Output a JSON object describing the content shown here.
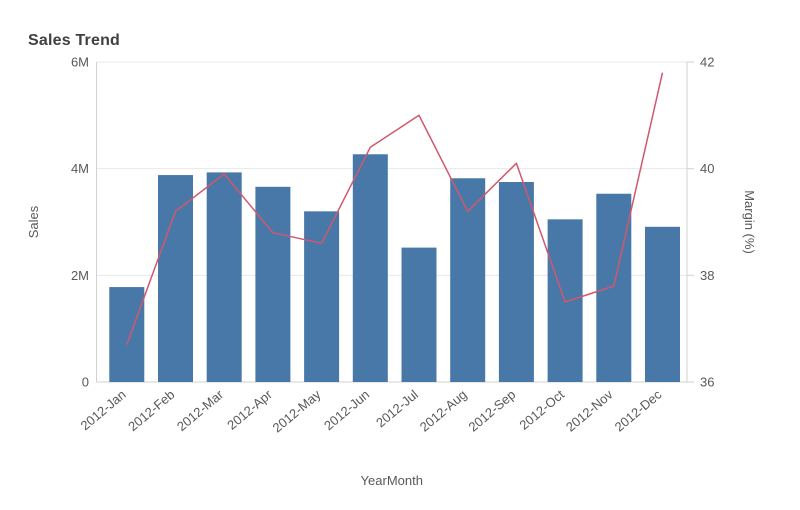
{
  "title": "Sales Trend",
  "colors": {
    "bar": "#4878a8",
    "line": "#d0586e",
    "grid": "#e8e8e8",
    "axis_line": "#d2d2d2",
    "tick_text": "#595959",
    "title_text": "#404040"
  },
  "chart_data": {
    "type": "bar",
    "subtype": "combo-bar-line",
    "title": "Sales Trend",
    "xlabel": "YearMonth",
    "grid": true,
    "legend": "none",
    "categories": [
      "2012-Jan",
      "2012-Feb",
      "2012-Mar",
      "2012-Apr",
      "2012-May",
      "2012-Jun",
      "2012-Jul",
      "2012-Aug",
      "2012-Sep",
      "2012-Oct",
      "2012-Nov",
      "2012-Dec"
    ],
    "series": [
      {
        "name": "Sales",
        "type": "bar",
        "axis": "left",
        "values": [
          1780000,
          3880000,
          3930000,
          3660000,
          3200000,
          4270000,
          2520000,
          3820000,
          3750000,
          3050000,
          3530000,
          2910000
        ]
      },
      {
        "name": "Margin (%)",
        "type": "line",
        "axis": "right",
        "values": [
          36.7,
          39.2,
          39.9,
          38.8,
          38.6,
          40.4,
          41.0,
          39.2,
          40.1,
          37.5,
          37.8,
          41.8
        ]
      }
    ],
    "left_axis": {
      "label": "Sales",
      "min": 0,
      "max": 6000000,
      "tick_labels": [
        "0",
        "2M",
        "4M",
        "6M"
      ]
    },
    "right_axis": {
      "label": "Margin (%)",
      "min": 36,
      "max": 42,
      "tick_labels": [
        "36",
        "38",
        "40",
        "42"
      ]
    }
  }
}
